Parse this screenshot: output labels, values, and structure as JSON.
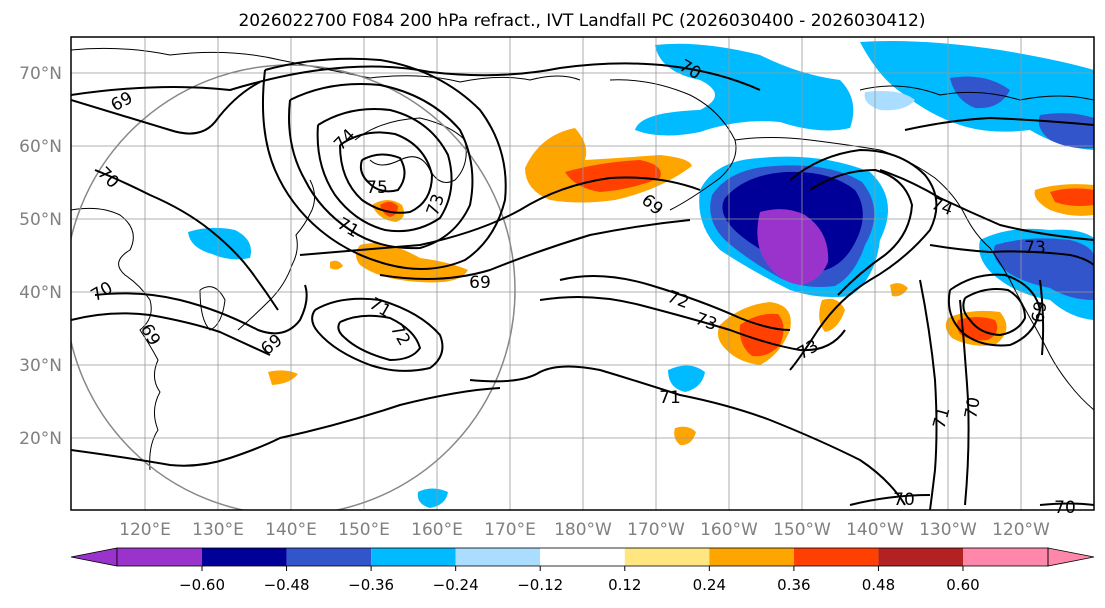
{
  "title": "2026022700 F084 200 hPa refract., IVT Landfall PC (2026030400 - 2026030412)",
  "map": {
    "lat_labels": [
      "70°N",
      "60°N",
      "50°N",
      "40°N",
      "30°N",
      "20°N"
    ],
    "lon_labels": [
      "120°E",
      "130°E",
      "140°E",
      "150°E",
      "160°E",
      "170°E",
      "180°W",
      "170°W",
      "160°W",
      "150°W",
      "140°W",
      "130°W",
      "120°W"
    ],
    "contour_labels": [
      "69",
      "70",
      "70",
      "69",
      "69",
      "74",
      "75",
      "73",
      "71",
      "71",
      "72",
      "69",
      "70",
      "69",
      "72",
      "73",
      "73",
      "71",
      "74",
      "73",
      "71",
      "70",
      "69",
      "70",
      "70"
    ]
  },
  "colorbar": {
    "ticks": [
      "−0.60",
      "−0.48",
      "−0.36",
      "−0.24",
      "−0.12",
      "0.12",
      "0.24",
      "0.36",
      "0.48",
      "0.60"
    ],
    "colors": [
      "#9933cc",
      "#000099",
      "#3355cc",
      "#00bbff",
      "#aaddff",
      "#ffffff",
      "#ffe680",
      "#ffa500",
      "#ff4000",
      "#b22222",
      "#ff88aa"
    ]
  },
  "colors": {
    "neg_strong": "#000099",
    "neg_purple": "#9933cc",
    "neg_mid": "#3355cc",
    "neg_light": "#00bbff",
    "neg_pale": "#aaddff",
    "pos_yellow": "#ffe680",
    "pos_orange": "#ffa500",
    "pos_red": "#ff4000"
  }
}
